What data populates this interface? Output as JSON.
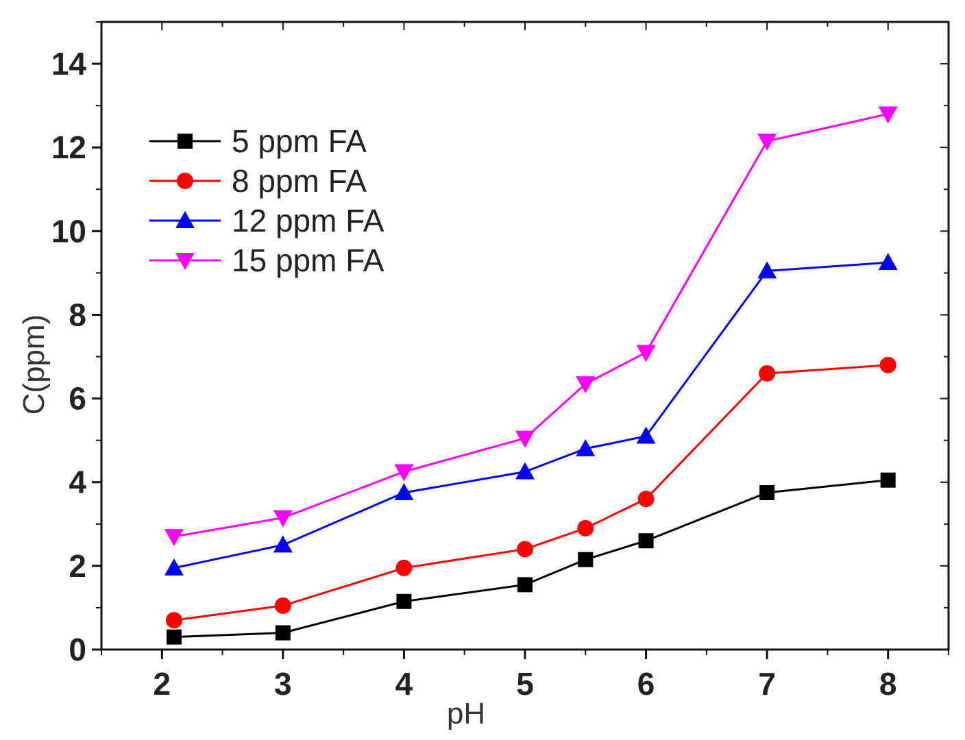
{
  "chart_data": {
    "type": "line",
    "title": "",
    "xlabel": "pH",
    "ylabel": "C(ppm)",
    "xlim": [
      1.5,
      8.5
    ],
    "ylim": [
      0,
      15
    ],
    "x_ticks": [
      2,
      3,
      4,
      5,
      6,
      7,
      8
    ],
    "x_tick_labels": [
      "2",
      "3",
      "4",
      "5",
      "6",
      "7",
      "8"
    ],
    "y_ticks": [
      0,
      2,
      4,
      6,
      8,
      10,
      12,
      14
    ],
    "y_tick_labels": [
      "0",
      "2",
      "4",
      "6",
      "8",
      "10",
      "12",
      "14"
    ],
    "grid": false,
    "legend_position": "top-left",
    "x": [
      2.1,
      3,
      4,
      5,
      5.5,
      6,
      7,
      8
    ],
    "series": [
      {
        "name": "5 ppm FA",
        "color": "#000000",
        "marker": "square",
        "values": [
          0.3,
          0.4,
          1.15,
          1.55,
          2.15,
          2.6,
          3.75,
          4.05
        ]
      },
      {
        "name": "8 ppm FA",
        "color": "#ff0000",
        "marker": "circle",
        "values": [
          0.7,
          1.05,
          1.95,
          2.4,
          2.9,
          3.6,
          6.6,
          6.8
        ]
      },
      {
        "name": "12 ppm FA",
        "color": "#0000ff",
        "marker": "triangle-up",
        "values": [
          1.95,
          2.5,
          3.75,
          4.25,
          4.8,
          5.1,
          9.05,
          9.25
        ]
      },
      {
        "name": "15 ppm FA",
        "color": "#ff00ff",
        "marker": "triangle-down",
        "values": [
          2.7,
          3.15,
          4.25,
          5.05,
          6.35,
          7.1,
          12.15,
          12.8
        ]
      }
    ]
  }
}
